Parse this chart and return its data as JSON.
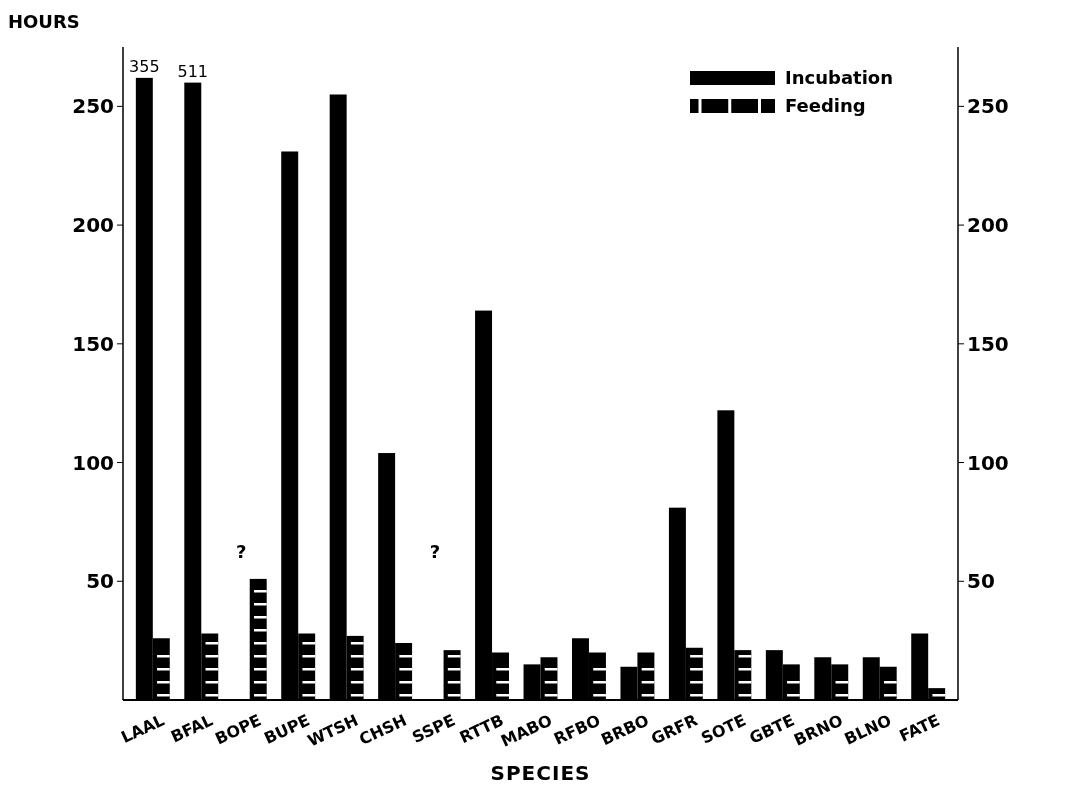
{
  "chart_data": {
    "type": "bar",
    "xlabel": "SPECIES",
    "ylabel": "HOURS",
    "categories": [
      "LAAL",
      "BFAL",
      "BOPE",
      "BUPE",
      "WTSH",
      "CHSH",
      "SSPE",
      "RTTB",
      "MABO",
      "RFBO",
      "BRBO",
      "GRFR",
      "SOTE",
      "GBTE",
      "BRNO",
      "BLNO",
      "FATE"
    ],
    "series": [
      {
        "name": "Incubation",
        "color": "#000000",
        "line_style": "solid",
        "values": [
          262,
          260,
          null,
          231,
          255,
          104,
          null,
          164,
          15,
          26,
          14,
          81,
          122,
          21,
          18,
          18,
          28
        ]
      },
      {
        "name": "Feeding",
        "color": "#000000",
        "line_style": "dashed",
        "values": [
          26,
          28,
          51,
          28,
          27,
          24,
          21,
          20,
          18,
          20,
          20,
          22,
          21,
          15,
          15,
          14,
          5
        ]
      }
    ],
    "ylim": [
      0,
      275
    ],
    "yticks": [
      50,
      100,
      150,
      200,
      250
    ],
    "y2lim": [
      0,
      275
    ],
    "y2ticks": [
      50,
      100,
      150,
      200,
      250
    ],
    "legend": "top right",
    "annotations": [
      {
        "text": "355",
        "x": "LAAL",
        "y": 262
      },
      {
        "text": "511",
        "x": "BFAL",
        "y": 260
      },
      "?",
      "?"
    ]
  }
}
